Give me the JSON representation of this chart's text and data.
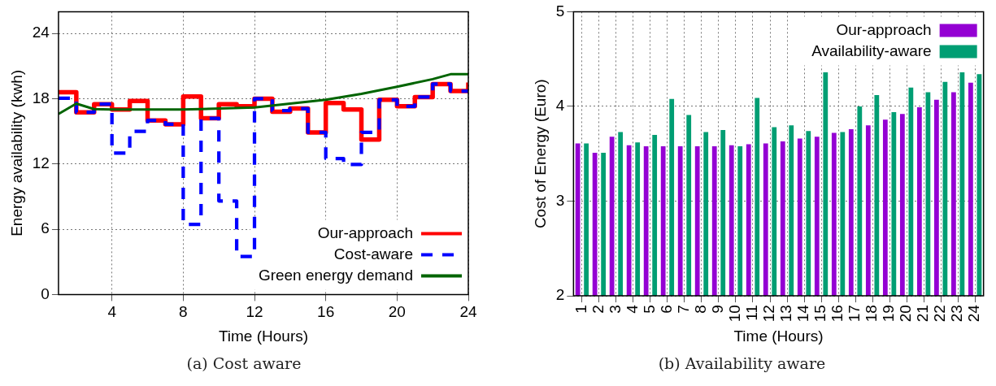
{
  "chart_data": [
    {
      "type": "step",
      "xlabel": "Time (Hours)",
      "ylabel": "Energy availability (kwh)",
      "annotations": [
        "(a)  Cost aware"
      ],
      "x": [
        1,
        2,
        3,
        4,
        5,
        6,
        7,
        8,
        9,
        10,
        11,
        12,
        13,
        14,
        15,
        16,
        17,
        18,
        19,
        20,
        21,
        22,
        23,
        24
      ],
      "series": [
        {
          "name": "Our-approach",
          "color": "#ff0000",
          "values": [
            18.6,
            16.75,
            17.5,
            17.0,
            17.8,
            16.0,
            15.65,
            18.2,
            16.2,
            17.5,
            17.3,
            18.0,
            16.8,
            17.1,
            14.9,
            17.6,
            17.0,
            14.25,
            17.9,
            17.3,
            18.15,
            19.35,
            18.7,
            19.5
          ]
        },
        {
          "name": "Cost-aware",
          "color": "#0000ff",
          "line_style": "dashed",
          "values": [
            18.05,
            16.75,
            17.5,
            13.0,
            15.0,
            16.0,
            15.65,
            6.45,
            16.2,
            8.6,
            3.5,
            18.0,
            16.9,
            17.1,
            14.9,
            12.5,
            11.95,
            14.9,
            17.9,
            17.3,
            18.15,
            19.35,
            18.7,
            18.7
          ]
        },
        {
          "name": "Green energy demand",
          "color": "#006400",
          "type": "line",
          "x": [
            1,
            2,
            3,
            4,
            8,
            12,
            14,
            16,
            18,
            20,
            22,
            23,
            24
          ],
          "values": [
            16.6,
            17.55,
            17.05,
            17.0,
            17.0,
            17.2,
            17.55,
            17.9,
            18.45,
            19.1,
            19.8,
            20.25,
            20.25
          ]
        }
      ],
      "xlim": [
        1,
        24
      ],
      "xticks": [
        4,
        8,
        12,
        16,
        20,
        24
      ],
      "ylim": [
        0,
        26
      ],
      "yticks": [
        0,
        6,
        12,
        18,
        24
      ],
      "grid": true,
      "legend": "bottom right"
    },
    {
      "type": "bar",
      "xlabel": "Time (Hours)",
      "ylabel": "Cost of Energy (Euro)",
      "annotations": [
        "(b)  Availability aware"
      ],
      "categories": [
        "1",
        "2",
        "3",
        "4",
        "5",
        "6",
        "7",
        "8",
        "9",
        "10",
        "11",
        "12",
        "13",
        "14",
        "15",
        "16",
        "17",
        "18",
        "19",
        "20",
        "21",
        "22",
        "23",
        "24"
      ],
      "series": [
        {
          "name": "Our-approach",
          "color": "#9400d3",
          "values": [
            3.61,
            3.51,
            3.68,
            3.59,
            3.58,
            3.58,
            3.58,
            3.58,
            3.58,
            3.59,
            3.6,
            3.61,
            3.63,
            3.66,
            3.68,
            3.72,
            3.76,
            3.8,
            3.86,
            3.92,
            3.99,
            4.07,
            4.15,
            4.25
          ]
        },
        {
          "name": "Availability-aware",
          "color": "#009e73",
          "values": [
            3.61,
            3.51,
            3.73,
            3.62,
            3.7,
            4.08,
            3.91,
            3.73,
            3.75,
            3.58,
            4.09,
            3.78,
            3.8,
            3.74,
            4.36,
            3.73,
            4.0,
            4.12,
            3.94,
            4.2,
            4.15,
            4.26,
            4.36,
            4.34
          ]
        }
      ],
      "ylim": [
        2,
        5
      ],
      "yticks": [
        2,
        3,
        4,
        5
      ],
      "grid": true,
      "legend": "top right"
    }
  ]
}
